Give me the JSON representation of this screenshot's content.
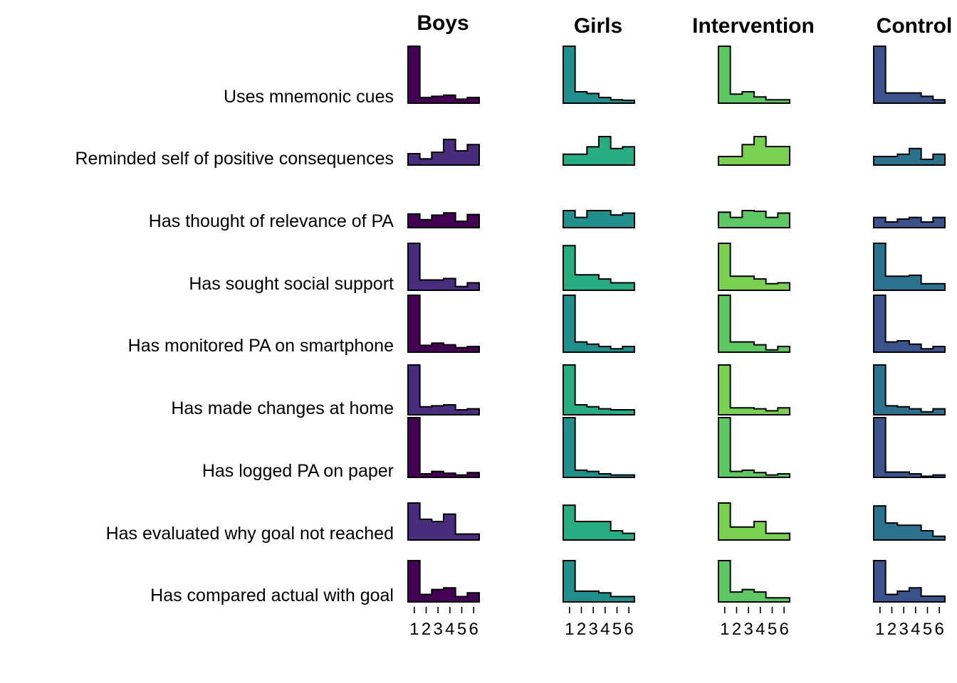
{
  "chart_data": {
    "type": "histogram-grid",
    "columns": [
      "Boys",
      "Girls",
      "Intervention",
      "Control"
    ],
    "rows": [
      "Uses mnemonic cues",
      "Reminded self of positive consequences",
      "Has thought of relevance of PA",
      "Has sought social support",
      "Has monitored PA on smartphone",
      "Has made changes at home",
      "Has logged PA on paper",
      "Has evaluated why goal not reached",
      "Has compared actual with goal"
    ],
    "x_ticks": [
      "1",
      "2",
      "3",
      "4",
      "5",
      "6"
    ],
    "column_colors": [
      "#440154",
      "#21908c",
      "#5ec962",
      "#3b528b"
    ],
    "row_colors": [
      [
        "#440154",
        "#21908c",
        "#5ec962",
        "#3b528b"
      ],
      [
        "#472d7b",
        "#27ad81",
        "#7ad151",
        "#2c728e"
      ],
      [
        "#440154",
        "#21908c",
        "#5ec962",
        "#3b528b"
      ],
      [
        "#472d7b",
        "#27ad81",
        "#7ad151",
        "#2c728e"
      ],
      [
        "#440154",
        "#21908c",
        "#5ec962",
        "#3b528b"
      ],
      [
        "#472d7b",
        "#27ad81",
        "#7ad151",
        "#2c728e"
      ],
      [
        "#440154",
        "#21908c",
        "#5ec962",
        "#3b528b"
      ],
      [
        "#472d7b",
        "#27ad81",
        "#7ad151",
        "#2c728e"
      ],
      [
        "#440154",
        "#21908c",
        "#5ec962",
        "#3b528b"
      ]
    ],
    "values": [
      [
        [
          1.0,
          0.1,
          0.12,
          0.14,
          0.07,
          0.1
        ],
        [
          1.0,
          0.2,
          0.17,
          0.1,
          0.06,
          0.05
        ],
        [
          1.0,
          0.16,
          0.2,
          0.11,
          0.06,
          0.06
        ],
        [
          1.0,
          0.18,
          0.18,
          0.18,
          0.12,
          0.06
        ]
      ],
      [
        [
          0.4,
          0.22,
          0.45,
          0.9,
          0.5,
          0.72
        ],
        [
          0.38,
          0.38,
          0.64,
          1.0,
          0.58,
          0.64
        ],
        [
          0.3,
          0.3,
          0.72,
          1.0,
          0.65,
          0.65
        ],
        [
          0.3,
          0.3,
          0.38,
          0.58,
          0.2,
          0.38
        ]
      ],
      [
        [
          0.6,
          0.35,
          0.55,
          0.65,
          0.28,
          0.58
        ],
        [
          0.75,
          0.45,
          0.75,
          0.75,
          0.56,
          0.64
        ],
        [
          0.68,
          0.45,
          0.75,
          0.72,
          0.45,
          0.64
        ],
        [
          0.45,
          0.25,
          0.38,
          0.45,
          0.25,
          0.45
        ]
      ],
      [
        [
          1.0,
          0.22,
          0.22,
          0.25,
          0.08,
          0.16
        ],
        [
          0.95,
          0.33,
          0.33,
          0.24,
          0.16,
          0.16
        ],
        [
          1.0,
          0.3,
          0.3,
          0.24,
          0.14,
          0.16
        ],
        [
          1.0,
          0.3,
          0.3,
          0.32,
          0.14,
          0.14
        ]
      ],
      [
        [
          1.0,
          0.12,
          0.16,
          0.13,
          0.08,
          0.1
        ],
        [
          1.0,
          0.18,
          0.14,
          0.1,
          0.06,
          0.1
        ],
        [
          1.0,
          0.18,
          0.18,
          0.13,
          0.04,
          0.1
        ],
        [
          1.0,
          0.18,
          0.2,
          0.14,
          0.06,
          0.1
        ]
      ],
      [
        [
          1.0,
          0.16,
          0.18,
          0.2,
          0.1,
          0.12
        ],
        [
          1.0,
          0.2,
          0.16,
          0.12,
          0.1,
          0.1
        ],
        [
          1.0,
          0.14,
          0.14,
          0.12,
          0.08,
          0.14
        ],
        [
          1.0,
          0.18,
          0.16,
          0.12,
          0.06,
          0.12
        ]
      ],
      [
        [
          1.0,
          0.06,
          0.1,
          0.07,
          0.04,
          0.08
        ],
        [
          1.0,
          0.12,
          0.1,
          0.06,
          0.04,
          0.04
        ],
        [
          1.0,
          0.1,
          0.12,
          0.08,
          0.04,
          0.06
        ],
        [
          1.0,
          0.09,
          0.09,
          0.06,
          0.02,
          0.04
        ]
      ],
      [
        [
          1.0,
          0.56,
          0.5,
          0.7,
          0.16,
          0.16
        ],
        [
          0.94,
          0.5,
          0.5,
          0.5,
          0.25,
          0.18
        ],
        [
          1.0,
          0.35,
          0.35,
          0.5,
          0.18,
          0.18
        ],
        [
          0.92,
          0.46,
          0.4,
          0.4,
          0.25,
          0.1
        ]
      ],
      [
        [
          1.0,
          0.18,
          0.3,
          0.34,
          0.13,
          0.22
        ],
        [
          1.0,
          0.26,
          0.26,
          0.22,
          0.13,
          0.13
        ],
        [
          1.0,
          0.24,
          0.3,
          0.24,
          0.1,
          0.1
        ],
        [
          1.0,
          0.18,
          0.26,
          0.34,
          0.14,
          0.14
        ]
      ]
    ]
  }
}
